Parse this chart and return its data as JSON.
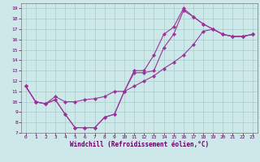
{
  "line1_x": [
    0,
    1,
    2,
    3,
    4,
    5,
    6,
    7,
    8,
    9,
    10,
    11,
    12,
    13,
    14,
    15,
    16,
    17,
    18,
    19,
    20,
    21,
    22,
    23
  ],
  "line1_y": [
    11.5,
    10.0,
    9.8,
    10.2,
    8.8,
    7.5,
    7.5,
    7.5,
    8.5,
    8.8,
    11.0,
    13.0,
    13.0,
    14.5,
    16.5,
    17.2,
    19.0,
    18.2,
    17.5,
    17.0,
    16.5,
    16.3,
    16.3,
    16.5
  ],
  "line2_x": [
    0,
    1,
    2,
    3,
    4,
    5,
    6,
    7,
    8,
    9,
    10,
    11,
    12,
    13,
    14,
    15,
    16,
    17,
    18,
    19,
    20,
    21,
    22,
    23
  ],
  "line2_y": [
    11.5,
    10.0,
    9.8,
    10.2,
    8.8,
    7.5,
    7.5,
    7.5,
    8.5,
    8.8,
    11.0,
    12.8,
    12.8,
    13.0,
    15.2,
    16.5,
    18.8,
    18.2,
    17.5,
    17.0,
    16.5,
    16.3,
    16.3,
    16.5
  ],
  "line3_x": [
    0,
    1,
    2,
    3,
    4,
    5,
    6,
    7,
    8,
    9,
    10,
    11,
    12,
    13,
    14,
    15,
    16,
    17,
    18,
    19,
    20,
    21,
    22,
    23
  ],
  "line3_y": [
    11.5,
    10.0,
    9.8,
    10.5,
    10.0,
    10.0,
    10.2,
    10.3,
    10.5,
    11.0,
    11.0,
    11.5,
    12.0,
    12.5,
    13.2,
    13.8,
    14.5,
    15.5,
    16.8,
    17.0,
    16.5,
    16.3,
    16.3,
    16.5
  ],
  "line_color": "#993399",
  "marker": "D",
  "marker_size": 2.2,
  "bg_color": "#cce8e8",
  "grid_color": "#aacccc",
  "xlim": [
    -0.5,
    23.5
  ],
  "ylim": [
    7,
    19.5
  ],
  "xticks": [
    0,
    1,
    2,
    3,
    4,
    5,
    6,
    7,
    8,
    9,
    10,
    11,
    12,
    13,
    14,
    15,
    16,
    17,
    18,
    19,
    20,
    21,
    22,
    23
  ],
  "yticks": [
    7,
    8,
    9,
    10,
    11,
    12,
    13,
    14,
    15,
    16,
    17,
    18,
    19
  ],
  "xlabel": "Windchill (Refroidissement éolien,°C)",
  "tick_color": "#660066",
  "label_color": "#660066",
  "tick_fontsize": 4.5,
  "xlabel_fontsize": 5.5,
  "lw": 0.8
}
